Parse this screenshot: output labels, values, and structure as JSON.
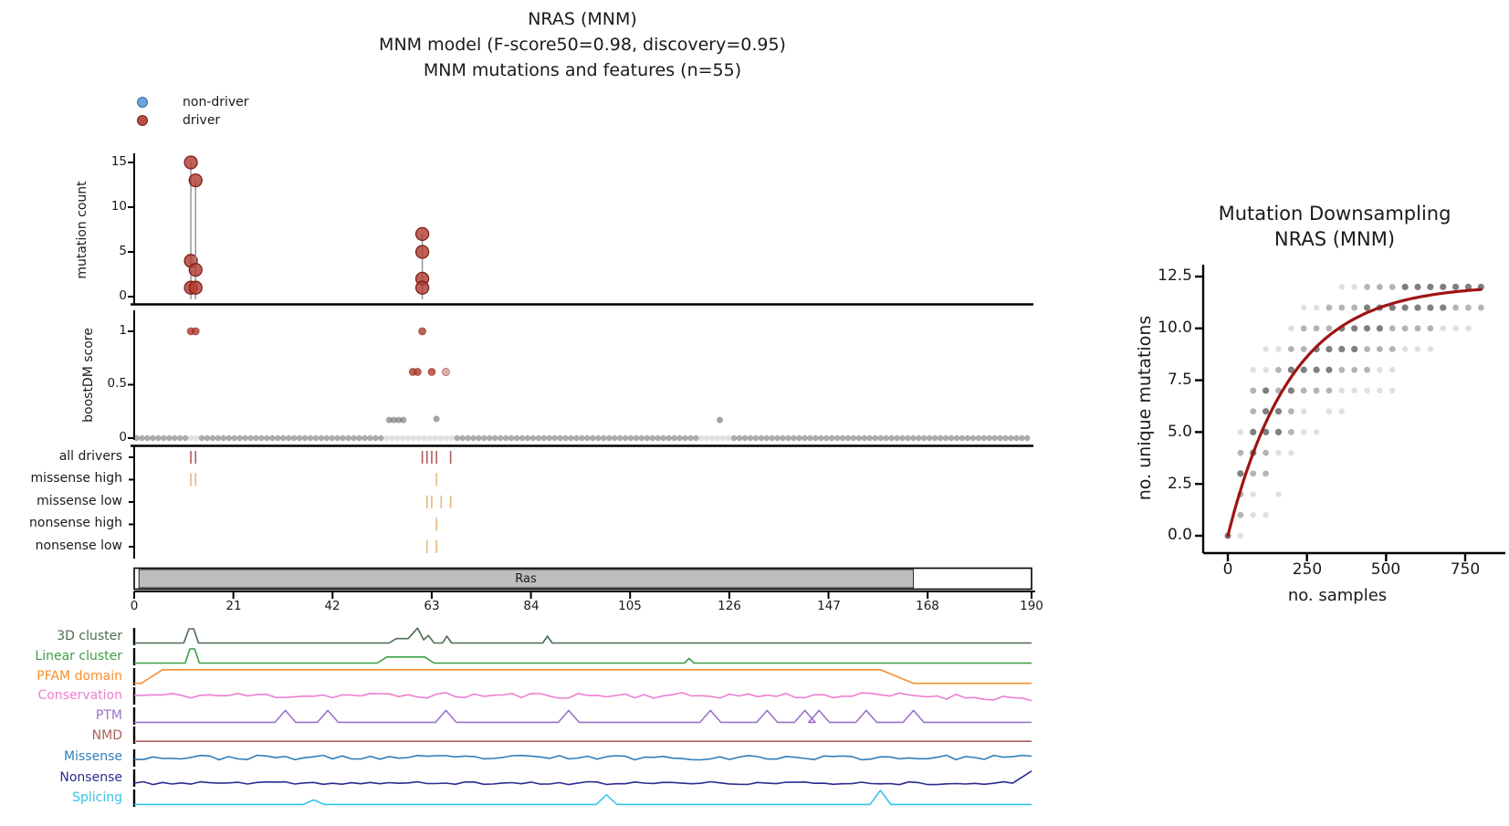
{
  "header": {
    "line1": "NRAS (MNM)",
    "line2": "MNM model (F-score50=0.98, discovery=0.95)",
    "line3": "MNM mutations and features (n=55)"
  },
  "legend": {
    "items": [
      {
        "label": "non-driver",
        "color": "#5b9bd5",
        "edge": "#3a6ea5"
      },
      {
        "label": "driver",
        "color": "#b03a2e",
        "edge": "#7d1f1a"
      }
    ]
  },
  "palette": {
    "driver": "#b03a2e",
    "driver_edge": "#7d1f1a",
    "non_driver": "#5b9bd5",
    "gray_dot": "#5a5a5a",
    "stem": "#909090",
    "tick_red": "#b35a5a",
    "tick_orange": "#e4b87f",
    "domain_fill": "#bdbdbd",
    "curve": "#9e1414",
    "axis": "#000000"
  },
  "chart_data": {
    "main": {
      "type": "needle+scatter+tracks",
      "x_axis": {
        "min": 0,
        "max": 190,
        "labels": [
          "0",
          "21",
          "42",
          "63",
          "84",
          "105",
          "126",
          "147",
          "168",
          "190"
        ],
        "values": [
          0,
          21,
          42,
          63,
          84,
          105,
          126,
          147,
          168,
          190
        ]
      },
      "mutation_count": {
        "ylabel": "mutation count",
        "ytick_labels": [
          "15",
          "10",
          "5",
          "0"
        ],
        "ytick_values": [
          15,
          10,
          5,
          0
        ],
        "ylim": [
          0,
          16
        ],
        "needles": [
          {
            "pos": 12,
            "counts": [
              15,
              4,
              1
            ]
          },
          {
            "pos": 13,
            "counts": [
              13,
              3,
              1
            ]
          },
          {
            "pos": 61,
            "counts": [
              7,
              5,
              2,
              1
            ]
          }
        ]
      },
      "boostdm": {
        "ylabel": "boostDM score",
        "ytick_labels": [
          "1",
          "0.5",
          "0"
        ],
        "ytick_values": [
          1,
          0.5,
          0
        ],
        "driver_points": [
          [
            12,
            1
          ],
          [
            13,
            1
          ],
          [
            61,
            1
          ],
          [
            59,
            0.62
          ],
          [
            60,
            0.62
          ],
          [
            63,
            0.62
          ],
          [
            66,
            0.62
          ]
        ],
        "passenger_points": [
          [
            54,
            0.17
          ],
          [
            55,
            0.17
          ],
          [
            56,
            0.17
          ],
          [
            57,
            0.17
          ],
          [
            64,
            0.18
          ],
          [
            124,
            0.17
          ]
        ],
        "zero_row": {
          "from": 0,
          "to": 190,
          "light_segments": [
            [
              11,
              14
            ],
            [
              53,
              68
            ],
            [
              120,
              127
            ]
          ]
        }
      },
      "tick_tracks": [
        {
          "label": "all drivers",
          "color_key": "tick_red",
          "positions": [
            12,
            13,
            61,
            62,
            63,
            64,
            67
          ]
        },
        {
          "label": "missense high",
          "color_key": "tick_orange",
          "positions": [
            12,
            13,
            64
          ]
        },
        {
          "label": "missense low",
          "color_key": "tick_orange",
          "positions": [
            62,
            63,
            65,
            67
          ]
        },
        {
          "label": "nonsense high",
          "color_key": "tick_orange",
          "positions": [
            64
          ]
        },
        {
          "label": "nonsense low",
          "color_key": "tick_orange",
          "positions": [
            62,
            64
          ]
        }
      ],
      "domain": {
        "label": "Ras",
        "start": 1,
        "end": 165
      },
      "features": [
        {
          "label": "3D cluster",
          "color": "#4a6d50",
          "kind": "breakpoints",
          "points": [
            [
              0,
              0.03
            ],
            [
              10.5,
              0.03
            ],
            [
              11.6,
              1
            ],
            [
              12.6,
              1
            ],
            [
              13.6,
              0.03
            ],
            [
              54,
              0.03
            ],
            [
              55.5,
              0.33
            ],
            [
              58,
              0.33
            ],
            [
              60,
              1.05
            ],
            [
              61.3,
              0.25
            ],
            [
              62.3,
              0.55
            ],
            [
              63.5,
              0.03
            ],
            [
              65.3,
              0.03
            ],
            [
              66.2,
              0.5
            ],
            [
              67.2,
              0.03
            ],
            [
              86.5,
              0.03
            ],
            [
              87.5,
              0.5
            ],
            [
              88.5,
              0.03
            ],
            [
              190,
              0.03
            ]
          ]
        },
        {
          "label": "Linear cluster",
          "color": "#3f9e44",
          "kind": "breakpoints",
          "points": [
            [
              0,
              0.03
            ],
            [
              10.8,
              0.03
            ],
            [
              11.8,
              1
            ],
            [
              12.8,
              1
            ],
            [
              13.8,
              0.03
            ],
            [
              51.5,
              0.03
            ],
            [
              53.5,
              0.45
            ],
            [
              61.5,
              0.45
            ],
            [
              63.5,
              0.03
            ],
            [
              116.5,
              0.03
            ],
            [
              117.5,
              0.35
            ],
            [
              118.5,
              0.03
            ],
            [
              190,
              0.03
            ]
          ]
        },
        {
          "label": "PFAM domain",
          "color": "#f78f2e",
          "kind": "breakpoints",
          "points": [
            [
              0,
              0.02
            ],
            [
              1.5,
              0.02
            ],
            [
              6,
              0.95
            ],
            [
              158,
              0.95
            ],
            [
              165,
              0.02
            ],
            [
              190,
              0.02
            ]
          ]
        },
        {
          "label": "Conservation",
          "color": "#ec7fd0",
          "kind": "noise",
          "seed": 11,
          "base": 0.5,
          "amp": 0.2,
          "taper_after": 165,
          "taper_to": 0.3
        },
        {
          "label": "PTM",
          "color": "#9b72c8",
          "kind": "spikes",
          "baseline": 0.04,
          "height": 0.85,
          "positions": [
            32,
            41,
            66,
            92,
            122,
            134,
            142,
            145,
            155,
            165
          ]
        },
        {
          "label": "NMD",
          "color": "#a8625a",
          "kind": "breakpoints",
          "points": [
            [
              0,
              0.05
            ],
            [
              190,
              0.05
            ]
          ]
        },
        {
          "label": "Missense",
          "color": "#2e7ebc",
          "kind": "noise",
          "seed": 23,
          "base": 0.5,
          "amp": 0.16
        },
        {
          "label": "Nonsense",
          "color": "#2b2b8f",
          "kind": "noise",
          "seed": 37,
          "base": 0.12,
          "amp": 0.1,
          "end_spike": {
            "from": 186,
            "h": 0.95
          }
        },
        {
          "label": "Splicing",
          "color": "#35c4e8",
          "kind": "spikes",
          "baseline": 0.04,
          "spikes": [
            [
              38,
              0.35
            ],
            [
              100,
              0.7
            ],
            [
              158,
              1.0
            ]
          ]
        }
      ]
    },
    "downsampling": {
      "type": "scatter",
      "title_line1": "Mutation Downsampling",
      "title_line2": "NRAS (MNM)",
      "xlabel": "no. samples",
      "ylabel": "no. unique mutations",
      "xtick_labels": [
        "0",
        "250",
        "500",
        "750"
      ],
      "xtick_values": [
        0,
        250,
        500,
        750
      ],
      "ytick_labels": [
        "12.5",
        "10.0",
        "7.5",
        "5.0",
        "2.5",
        "0.0"
      ],
      "ytick_values": [
        12.5,
        10.0,
        7.5,
        5.0,
        2.5,
        0.0
      ],
      "xlim": [
        0,
        850
      ],
      "ylim": [
        0,
        12.5
      ],
      "curve": {
        "model": "y=a*(1-exp(-x/tau))",
        "a": 12.1,
        "tau": 200,
        "x_max": 800
      },
      "opacity_classes": {
        "l": 0.16,
        "m": 0.38,
        "d": 0.65
      },
      "columns": [
        {
          "x": 0,
          "pts": [
            [
              0,
              "d"
            ]
          ]
        },
        {
          "x": 40,
          "pts": [
            [
              0,
              "l"
            ],
            [
              1,
              "m"
            ],
            [
              2,
              "m"
            ],
            [
              3,
              "d"
            ],
            [
              4,
              "m"
            ],
            [
              5,
              "l"
            ]
          ]
        },
        {
          "x": 80,
          "pts": [
            [
              1,
              "l"
            ],
            [
              2,
              "l"
            ],
            [
              3,
              "m"
            ],
            [
              4,
              "d"
            ],
            [
              5,
              "d"
            ],
            [
              6,
              "m"
            ],
            [
              7,
              "m"
            ],
            [
              8,
              "l"
            ]
          ]
        },
        {
          "x": 120,
          "pts": [
            [
              1,
              "l"
            ],
            [
              3,
              "m"
            ],
            [
              4,
              "m"
            ],
            [
              5,
              "d"
            ],
            [
              6,
              "d"
            ],
            [
              7,
              "d"
            ],
            [
              8,
              "l"
            ],
            [
              9,
              "l"
            ]
          ]
        },
        {
          "x": 160,
          "pts": [
            [
              2,
              "l"
            ],
            [
              4,
              "l"
            ],
            [
              5,
              "d"
            ],
            [
              6,
              "d"
            ],
            [
              7,
              "m"
            ],
            [
              8,
              "m"
            ],
            [
              9,
              "l"
            ]
          ]
        },
        {
          "x": 200,
          "pts": [
            [
              4,
              "l"
            ],
            [
              5,
              "m"
            ],
            [
              6,
              "m"
            ],
            [
              7,
              "d"
            ],
            [
              8,
              "d"
            ],
            [
              9,
              "m"
            ],
            [
              10,
              "l"
            ]
          ]
        },
        {
          "x": 240,
          "pts": [
            [
              5,
              "l"
            ],
            [
              6,
              "l"
            ],
            [
              7,
              "m"
            ],
            [
              8,
              "d"
            ],
            [
              9,
              "m"
            ],
            [
              10,
              "m"
            ],
            [
              11,
              "l"
            ]
          ]
        },
        {
          "x": 280,
          "pts": [
            [
              5,
              "l"
            ],
            [
              7,
              "m"
            ],
            [
              8,
              "d"
            ],
            [
              9,
              "d"
            ],
            [
              10,
              "m"
            ],
            [
              11,
              "l"
            ]
          ]
        },
        {
          "x": 320,
          "pts": [
            [
              6,
              "l"
            ],
            [
              7,
              "m"
            ],
            [
              8,
              "d"
            ],
            [
              9,
              "d"
            ],
            [
              10,
              "m"
            ],
            [
              11,
              "m"
            ]
          ]
        },
        {
          "x": 360,
          "pts": [
            [
              6,
              "l"
            ],
            [
              7,
              "l"
            ],
            [
              8,
              "m"
            ],
            [
              9,
              "d"
            ],
            [
              10,
              "d"
            ],
            [
              11,
              "m"
            ],
            [
              12,
              "l"
            ]
          ]
        },
        {
          "x": 400,
          "pts": [
            [
              7,
              "l"
            ],
            [
              8,
              "m"
            ],
            [
              9,
              "d"
            ],
            [
              10,
              "d"
            ],
            [
              11,
              "m"
            ],
            [
              12,
              "l"
            ]
          ]
        },
        {
          "x": 440,
          "pts": [
            [
              7,
              "l"
            ],
            [
              8,
              "m"
            ],
            [
              9,
              "m"
            ],
            [
              10,
              "d"
            ],
            [
              11,
              "d"
            ],
            [
              12,
              "m"
            ]
          ]
        },
        {
          "x": 480,
          "pts": [
            [
              7,
              "l"
            ],
            [
              8,
              "l"
            ],
            [
              9,
              "m"
            ],
            [
              10,
              "d"
            ],
            [
              11,
              "d"
            ],
            [
              12,
              "m"
            ]
          ]
        },
        {
          "x": 520,
          "pts": [
            [
              7,
              "l"
            ],
            [
              8,
              "l"
            ],
            [
              9,
              "m"
            ],
            [
              10,
              "m"
            ],
            [
              11,
              "d"
            ],
            [
              12,
              "m"
            ]
          ]
        },
        {
          "x": 560,
          "pts": [
            [
              9,
              "l"
            ],
            [
              10,
              "m"
            ],
            [
              11,
              "d"
            ],
            [
              12,
              "d"
            ]
          ]
        },
        {
          "x": 600,
          "pts": [
            [
              9,
              "l"
            ],
            [
              10,
              "m"
            ],
            [
              11,
              "d"
            ],
            [
              12,
              "d"
            ]
          ]
        },
        {
          "x": 640,
          "pts": [
            [
              9,
              "l"
            ],
            [
              10,
              "m"
            ],
            [
              11,
              "d"
            ],
            [
              12,
              "d"
            ]
          ]
        },
        {
          "x": 680,
          "pts": [
            [
              10,
              "l"
            ],
            [
              11,
              "d"
            ],
            [
              12,
              "d"
            ]
          ]
        },
        {
          "x": 720,
          "pts": [
            [
              10,
              "l"
            ],
            [
              11,
              "m"
            ],
            [
              12,
              "d"
            ]
          ]
        },
        {
          "x": 760,
          "pts": [
            [
              10,
              "l"
            ],
            [
              11,
              "m"
            ],
            [
              12,
              "d"
            ]
          ]
        },
        {
          "x": 800,
          "pts": [
            [
              11,
              "m"
            ],
            [
              12,
              "d"
            ]
          ]
        }
      ]
    }
  }
}
